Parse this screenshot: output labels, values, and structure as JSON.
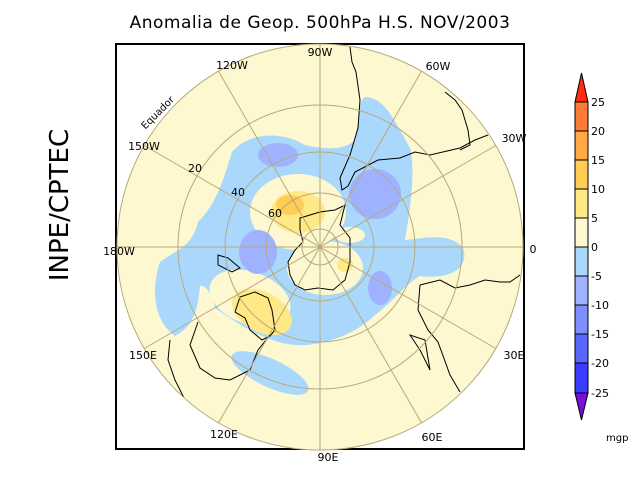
{
  "title": "Anomalia de Geop. 500hPa H.S. NOV/2003",
  "side_label": "INPE/CPTEC",
  "map": {
    "projection": "polar stereographic (South Pole)",
    "lon_labels": {
      "n90w": "90W",
      "n120w": "120W",
      "n60w": "60W",
      "n30w": "30W",
      "n150w": "150W",
      "n180w": "180W",
      "n0": "0",
      "n150e": "150E",
      "n30e": "30E",
      "n120e": "120E",
      "n60e": "60E",
      "n90e": "90E"
    },
    "lat_labels": {
      "l20": "20",
      "l40": "40",
      "l60": "60"
    },
    "equator_label": "Equador"
  },
  "colorbar": {
    "unit": "mgp",
    "labels": [
      "25",
      "20",
      "15",
      "10",
      "5",
      "0",
      "-5",
      "-10",
      "-15",
      "-20",
      "-25"
    ],
    "colors": {
      "above25": "#ff2a10",
      "b20_25": "#ff7a35",
      "b15_20": "#ffa845",
      "b10_15": "#ffcc55",
      "b5_10": "#ffe886",
      "b0_5": "#fdf8cf",
      "bm5_0": "#aad8fc",
      "bm10_m5": "#9fb2ff",
      "bm15_m10": "#7f8eff",
      "bm20_m15": "#5a68ff",
      "bm25_m20": "#3a3cff",
      "below_m25": "#7a10d8"
    }
  }
}
